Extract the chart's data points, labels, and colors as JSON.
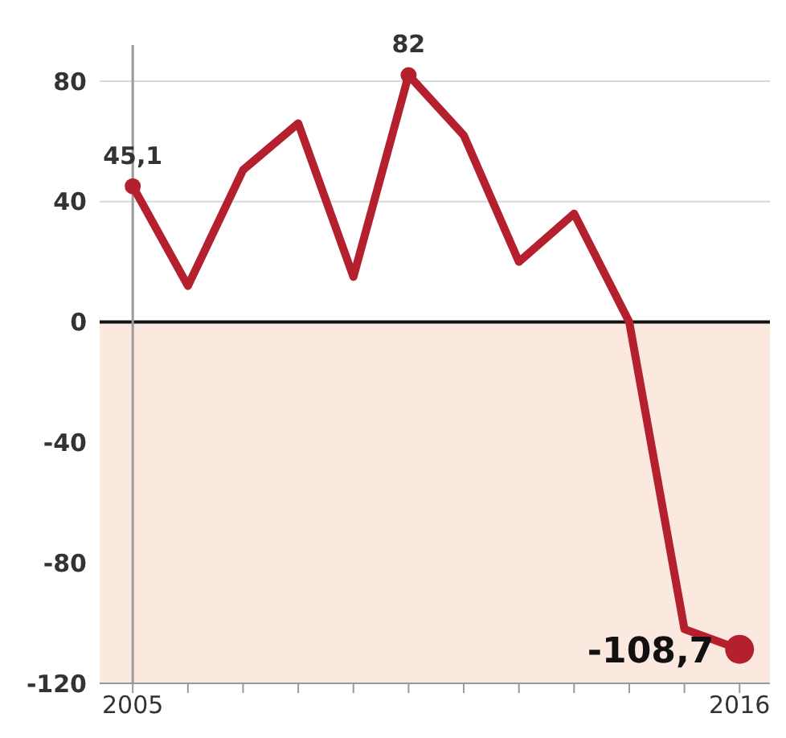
{
  "chart_data": {
    "type": "line",
    "x": [
      2005,
      2006,
      2007,
      2008,
      2009,
      2010,
      2011,
      2012,
      2013,
      2014,
      2015,
      2016
    ],
    "series": [
      {
        "color": "#b5202e",
        "values": [
          45.1,
          12,
          50.5,
          66,
          15,
          82,
          62,
          20,
          36,
          0,
          -102,
          -108.7
        ],
        "value_labels": [
          "45,1",
          null,
          null,
          null,
          null,
          "82",
          null,
          null,
          null,
          null,
          null,
          "-108,7"
        ]
      }
    ],
    "xlim": [
      2004.4,
      2016.55
    ],
    "xticks": [
      2005,
      {
        "value": 2006,
        "label": null
      },
      {
        "value": 2007,
        "label": null
      },
      {
        "value": 2008,
        "label": null
      },
      {
        "value": 2009,
        "label": null
      },
      {
        "value": 2010,
        "label": null
      },
      {
        "value": 2011,
        "label": null
      },
      {
        "value": 2012,
        "label": null
      },
      {
        "value": 2013,
        "label": null
      },
      {
        "value": 2014,
        "label": null
      },
      {
        "value": 2015,
        "label": null
      },
      2016
    ],
    "ylim": [
      -120,
      92
    ],
    "yticks": [
      -120,
      -80,
      -40,
      0,
      40,
      80
    ],
    "grid": "y",
    "line_style": "solid",
    "bands": [
      {
        "axis": "y",
        "from": -120,
        "to": 0,
        "color": "#fbe8df"
      }
    ],
    "ref_lines": [
      {
        "axis": "y",
        "value": 0,
        "color": "#111111"
      },
      {
        "axis": "x",
        "value": 2005,
        "color": "#9a9a9a"
      }
    ]
  }
}
